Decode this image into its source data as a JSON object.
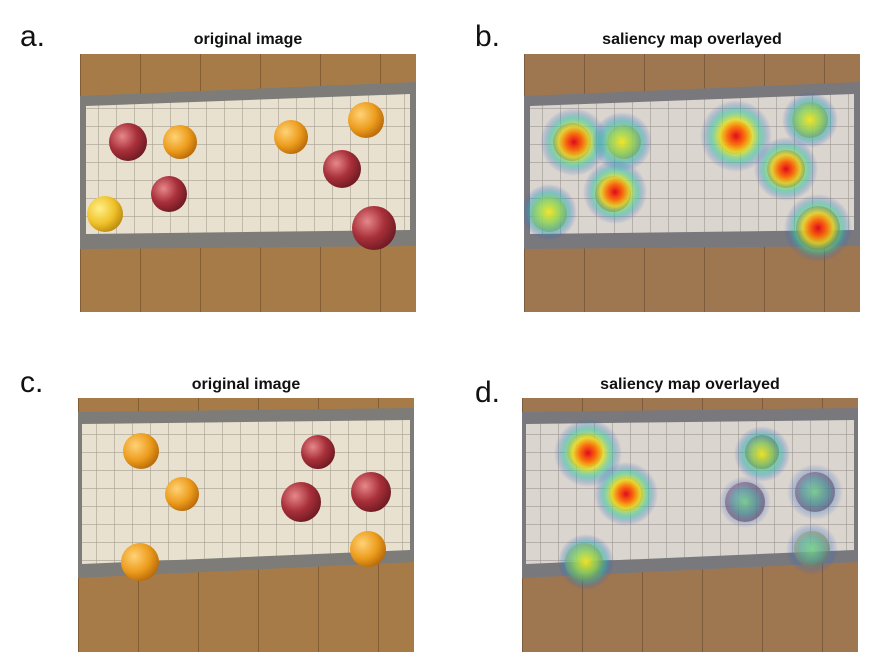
{
  "panels": [
    {
      "letter": "a.",
      "title": "original image"
    },
    {
      "letter": "b.",
      "title": "saliency map overlayed"
    },
    {
      "letter": "c.",
      "title": "original image"
    },
    {
      "letter": "d.",
      "title": "saliency map overlayed"
    }
  ],
  "colors": {
    "wood": "#a57a46",
    "towel": "#e9e2d2",
    "towel_border": "#8a8a8a",
    "apple": "#b4404a",
    "orange": "#eaa020"
  }
}
